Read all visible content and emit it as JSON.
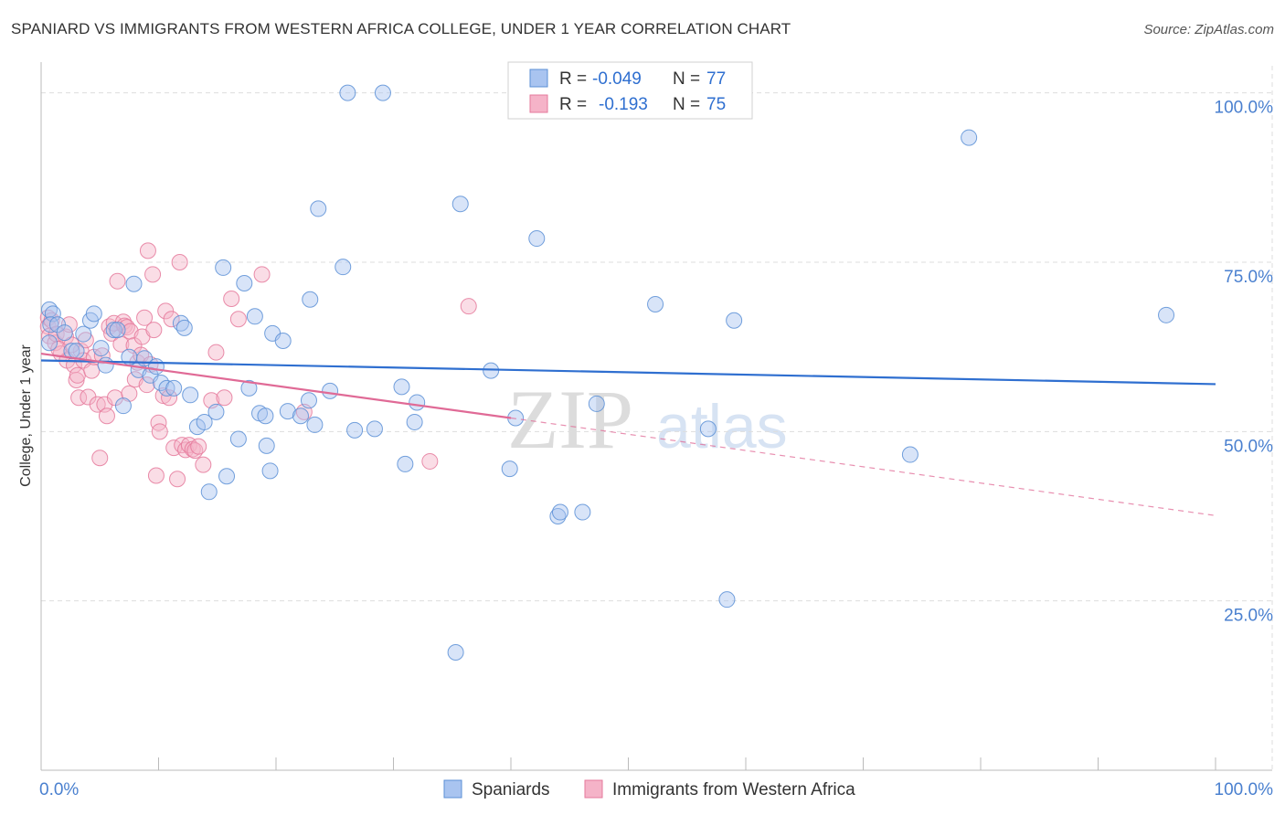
{
  "header": {
    "title": "SPANIARD VS IMMIGRANTS FROM WESTERN AFRICA COLLEGE, UNDER 1 YEAR CORRELATION CHART",
    "source": "Source: ZipAtlas.com"
  },
  "watermark": {
    "zip": "ZIP",
    "atlas": "atlas"
  },
  "colors": {
    "blue_fill": "#a9c4f0",
    "blue_stroke": "#5b8fd6",
    "blue_line": "#2f6fd0",
    "pink_fill": "#f5b3c8",
    "pink_stroke": "#e5799b",
    "pink_line": "#e06a96",
    "axis_label": "#4a80cf",
    "grid": "#dddddd"
  },
  "legend_box": {
    "rows": [
      {
        "r_label": "R =",
        "r_value": "-0.049",
        "n_label": "N =",
        "n_value": "77"
      },
      {
        "r_label": "R =",
        "r_value": "-0.193",
        "n_label": "N =",
        "n_value": "75"
      }
    ]
  },
  "bottom_legend": {
    "series1": "Spaniards",
    "series2": "Immigrants from Western Africa"
  },
  "chart_data": {
    "type": "scatter",
    "title": "SPANIARD VS IMMIGRANTS FROM WESTERN AFRICA COLLEGE, UNDER 1 YEAR CORRELATION CHART",
    "xlabel": "",
    "ylabel": "College, Under 1 year",
    "xlim": [
      0,
      100
    ],
    "ylim": [
      0,
      104
    ],
    "x_tick_labels": [
      "0.0%",
      "100.0%"
    ],
    "y_tick_labels": [
      {
        "value": 100,
        "label": "100.0%"
      },
      {
        "value": 75,
        "label": "75.0%"
      },
      {
        "value": 50,
        "label": "50.0%"
      },
      {
        "value": 25,
        "label": "25.0%"
      }
    ],
    "series": [
      {
        "name": "Spaniards",
        "r": -0.049,
        "n": 77,
        "trend": {
          "x0": 0,
          "y0": 60.5,
          "x1": 100,
          "y1": 57.0
        },
        "points": [
          [
            0.7,
            68
          ],
          [
            1.0,
            67.4
          ],
          [
            0.8,
            65.8
          ],
          [
            1.4,
            65.8
          ],
          [
            0.7,
            63.1
          ],
          [
            2.0,
            64.6
          ],
          [
            2.6,
            61.9
          ],
          [
            3.0,
            61.9
          ],
          [
            3.6,
            64.4
          ],
          [
            4.2,
            66.4
          ],
          [
            4.5,
            67.4
          ],
          [
            5.1,
            62.3
          ],
          [
            5.5,
            59.8
          ],
          [
            6.2,
            65.0
          ],
          [
            6.5,
            65.0
          ],
          [
            7.0,
            53.8
          ],
          [
            7.5,
            61.0
          ],
          [
            7.9,
            71.8
          ],
          [
            8.3,
            59.1
          ],
          [
            8.8,
            60.8
          ],
          [
            9.3,
            58.3
          ],
          [
            9.8,
            59.6
          ],
          [
            10.2,
            57.2
          ],
          [
            10.7,
            56.4
          ],
          [
            11.3,
            56.4
          ],
          [
            11.9,
            66.0
          ],
          [
            12.2,
            65.3
          ],
          [
            12.7,
            55.4
          ],
          [
            13.3,
            50.7
          ],
          [
            13.9,
            51.4
          ],
          [
            14.3,
            41.1
          ],
          [
            14.9,
            52.9
          ],
          [
            15.5,
            74.2
          ],
          [
            15.8,
            43.4
          ],
          [
            16.8,
            48.9
          ],
          [
            17.3,
            71.9
          ],
          [
            18.2,
            67.0
          ],
          [
            17.7,
            56.4
          ],
          [
            18.6,
            52.7
          ],
          [
            19.1,
            52.3
          ],
          [
            19.2,
            47.9
          ],
          [
            19.5,
            44.2
          ],
          [
            19.7,
            64.5
          ],
          [
            20.6,
            63.4
          ],
          [
            21.0,
            53.0
          ],
          [
            22.1,
            52.3
          ],
          [
            22.8,
            54.6
          ],
          [
            22.9,
            69.5
          ],
          [
            23.3,
            51.0
          ],
          [
            23.6,
            82.9
          ],
          [
            24.6,
            56.0
          ],
          [
            25.7,
            74.3
          ],
          [
            26.1,
            100
          ],
          [
            26.7,
            50.2
          ],
          [
            28.4,
            50.4
          ],
          [
            29.1,
            100
          ],
          [
            30.7,
            56.6
          ],
          [
            31.0,
            45.2
          ],
          [
            32.0,
            54.3
          ],
          [
            31.8,
            51.4
          ],
          [
            35.3,
            17.4
          ],
          [
            35.7,
            83.6
          ],
          [
            38.3,
            59.0
          ],
          [
            39.9,
            44.5
          ],
          [
            40.4,
            52.0
          ],
          [
            42.2,
            78.5
          ],
          [
            44.0,
            37.5
          ],
          [
            44.2,
            38.1
          ],
          [
            46.1,
            38.1
          ],
          [
            47.3,
            54.1
          ],
          [
            52.3,
            68.8
          ],
          [
            56.8,
            50.4
          ],
          [
            58.4,
            25.2
          ],
          [
            59.0,
            66.4
          ],
          [
            74.0,
            46.6
          ],
          [
            79.0,
            93.4
          ],
          [
            95.8,
            67.2
          ]
        ]
      },
      {
        "name": "Immigrants from Western Africa",
        "r": -0.193,
        "n": 75,
        "trend": {
          "x0": 0,
          "y0": 61.5,
          "x1": 40.0,
          "y1": 52.0,
          "dash_x1": 100,
          "dash_y1": 37.6
        },
        "points": [
          [
            0.6,
            66.8
          ],
          [
            0.6,
            65.5
          ],
          [
            0.7,
            64.1
          ],
          [
            0.9,
            66.4
          ],
          [
            1.2,
            63.1
          ],
          [
            1.3,
            64.4
          ],
          [
            1.7,
            61.5
          ],
          [
            2.1,
            64.0
          ],
          [
            2.2,
            60.5
          ],
          [
            2.4,
            65.8
          ],
          [
            2.8,
            59.8
          ],
          [
            3.0,
            57.6
          ],
          [
            3.1,
            58.3
          ],
          [
            3.2,
            55.0
          ],
          [
            3.4,
            61.9
          ],
          [
            3.6,
            60.5
          ],
          [
            4.0,
            55.1
          ],
          [
            4.3,
            59.0
          ],
          [
            4.5,
            61.0
          ],
          [
            4.8,
            54.0
          ],
          [
            5.0,
            46.1
          ],
          [
            5.4,
            54.0
          ],
          [
            5.6,
            52.3
          ],
          [
            5.8,
            65.5
          ],
          [
            6.0,
            64.5
          ],
          [
            6.2,
            66.0
          ],
          [
            6.3,
            55.0
          ],
          [
            6.5,
            72.2
          ],
          [
            6.8,
            62.9
          ],
          [
            7.0,
            66.2
          ],
          [
            7.1,
            65.6
          ],
          [
            7.3,
            65.4
          ],
          [
            7.5,
            55.6
          ],
          [
            7.6,
            64.8
          ],
          [
            7.9,
            62.7
          ],
          [
            8.0,
            57.7
          ],
          [
            8.2,
            60.2
          ],
          [
            8.5,
            61.3
          ],
          [
            8.6,
            64.0
          ],
          [
            8.8,
            66.8
          ],
          [
            9.0,
            56.9
          ],
          [
            9.1,
            76.7
          ],
          [
            9.3,
            59.9
          ],
          [
            9.5,
            73.2
          ],
          [
            9.8,
            43.5
          ],
          [
            10.0,
            51.3
          ],
          [
            10.1,
            50.0
          ],
          [
            10.4,
            55.3
          ],
          [
            10.6,
            67.8
          ],
          [
            10.9,
            55.0
          ],
          [
            11.1,
            66.6
          ],
          [
            11.3,
            47.6
          ],
          [
            11.6,
            43.0
          ],
          [
            11.8,
            75.0
          ],
          [
            12.0,
            48.0
          ],
          [
            12.3,
            47.3
          ],
          [
            12.6,
            48.0
          ],
          [
            12.9,
            47.4
          ],
          [
            13.1,
            47.2
          ],
          [
            13.4,
            47.8
          ],
          [
            13.8,
            45.1
          ],
          [
            14.5,
            54.6
          ],
          [
            14.9,
            61.7
          ],
          [
            15.6,
            55.0
          ],
          [
            16.2,
            69.6
          ],
          [
            16.8,
            66.6
          ],
          [
            18.8,
            73.2
          ],
          [
            22.4,
            52.9
          ],
          [
            33.1,
            45.6
          ],
          [
            36.4,
            68.5
          ],
          [
            1.5,
            62.2
          ],
          [
            5.2,
            61.2
          ],
          [
            3.8,
            63.5
          ],
          [
            2.6,
            62.8
          ],
          [
            9.6,
            65.0
          ]
        ]
      }
    ]
  }
}
